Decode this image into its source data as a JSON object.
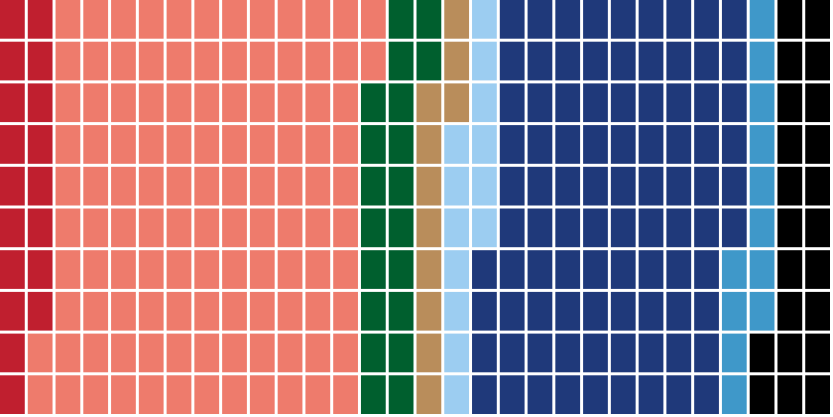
{
  "chart_data": {
    "type": "waffle",
    "rows": 10,
    "columns": 30,
    "fill_order": "column",
    "values": [
      18,
      114,
      20,
      11,
      13,
      90,
      12,
      22
    ],
    "colors": [
      "#c01f2f",
      "#ee7b6c",
      "#005f2e",
      "#b98d5b",
      "#9ccdf1",
      "#1f397a",
      "#3f98c9",
      "#000000"
    ]
  }
}
